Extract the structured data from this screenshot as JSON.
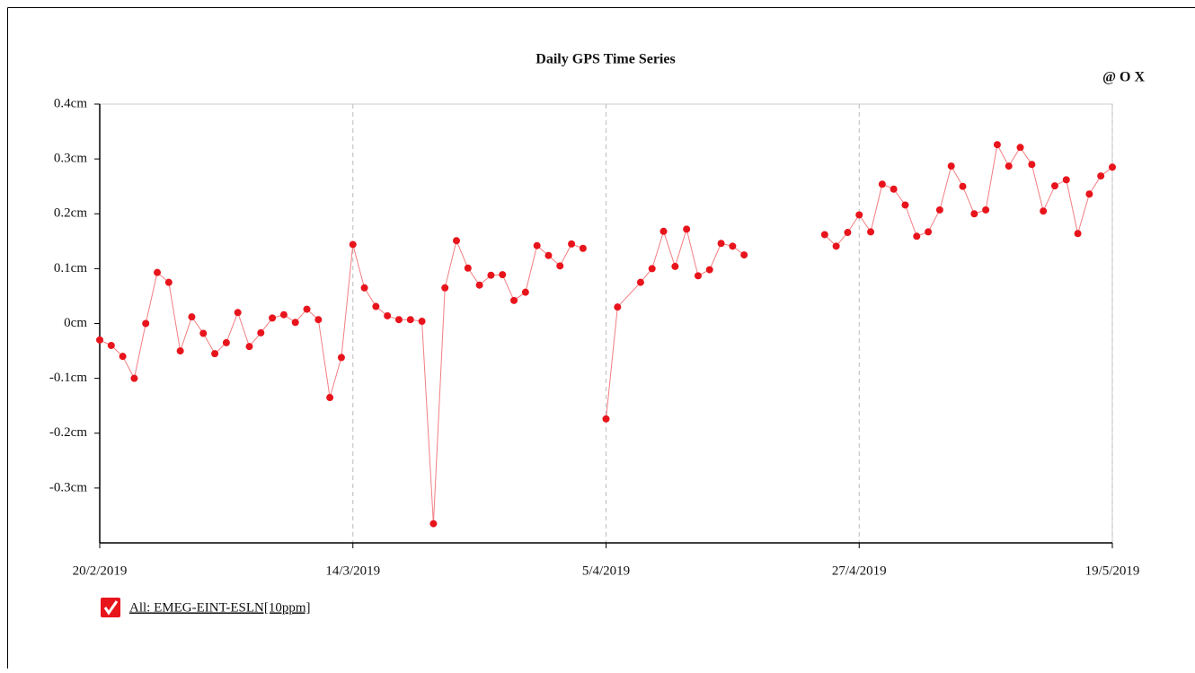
{
  "chart_data": {
    "type": "line",
    "title": "Daily GPS Time Series",
    "toolbar_text": "@ O X",
    "x": [
      "2019-02-20",
      "2019-02-21",
      "2019-02-22",
      "2019-02-23",
      "2019-02-24",
      "2019-02-25",
      "2019-02-26",
      "2019-02-27",
      "2019-02-28",
      "2019-03-01",
      "2019-03-02",
      "2019-03-03",
      "2019-03-04",
      "2019-03-05",
      "2019-03-06",
      "2019-03-07",
      "2019-03-08",
      "2019-03-09",
      "2019-03-10",
      "2019-03-11",
      "2019-03-12",
      "2019-03-13",
      "2019-03-14",
      "2019-03-15",
      "2019-03-16",
      "2019-03-17",
      "2019-03-18",
      "2019-03-19",
      "2019-03-20",
      "2019-03-21",
      "2019-03-22",
      "2019-03-23",
      "2019-03-24",
      "2019-03-25",
      "2019-03-26",
      "2019-03-27",
      "2019-03-28",
      "2019-03-29",
      "2019-03-30",
      "2019-03-31",
      "2019-04-01",
      "2019-04-02",
      "2019-04-03",
      "2019-04-04",
      "2019-04-05",
      "2019-04-06",
      "2019-04-08",
      "2019-04-09",
      "2019-04-10",
      "2019-04-11",
      "2019-04-12",
      "2019-04-13",
      "2019-04-14",
      "2019-04-15",
      "2019-04-16",
      "2019-04-17",
      "2019-04-18",
      "2019-04-24",
      "2019-04-25",
      "2019-04-26",
      "2019-04-27",
      "2019-04-28",
      "2019-04-29",
      "2019-04-30",
      "2019-05-01",
      "2019-05-02",
      "2019-05-03",
      "2019-05-04",
      "2019-05-05",
      "2019-05-06",
      "2019-05-07",
      "2019-05-08",
      "2019-05-09",
      "2019-05-10",
      "2019-05-11",
      "2019-05-12",
      "2019-05-13",
      "2019-05-14",
      "2019-05-15",
      "2019-05-16",
      "2019-05-17",
      "2019-05-18",
      "2019-05-19"
    ],
    "series": [
      {
        "name": "All: EMEG-EINT-ESLN[10ppm]",
        "color": "#e8141c",
        "values": [
          -0.03,
          -0.04,
          -0.06,
          -0.1,
          0.0,
          0.093,
          0.075,
          -0.05,
          0.012,
          -0.018,
          -0.055,
          -0.035,
          0.02,
          -0.042,
          -0.017,
          0.01,
          0.016,
          0.002,
          0.026,
          0.007,
          -0.135,
          -0.062,
          0.144,
          0.065,
          0.031,
          0.014,
          0.007,
          0.007,
          0.004,
          -0.365,
          0.065,
          0.151,
          0.101,
          0.07,
          0.088,
          0.089,
          0.042,
          0.057,
          0.142,
          0.124,
          0.105,
          0.145,
          0.137,
          null,
          -0.174,
          0.03,
          0.075,
          0.1,
          0.168,
          0.104,
          0.172,
          0.087,
          0.098,
          0.146,
          0.141,
          0.125,
          null,
          0.162,
          0.141,
          0.166,
          0.198,
          0.167,
          0.254,
          0.245,
          0.216,
          0.159,
          0.167,
          0.207,
          0.287,
          0.25,
          0.2,
          0.207,
          0.326,
          0.287,
          0.321,
          0.29,
          0.205,
          0.251,
          0.262,
          0.164,
          0.236,
          0.269,
          0.285
        ]
      }
    ],
    "xlim": [
      "2019-02-20",
      "2019-05-19"
    ],
    "xticks": [
      {
        "value": "2019-02-20",
        "label": "20/2/2019"
      },
      {
        "value": "2019-03-14",
        "label": "14/3/2019"
      },
      {
        "value": "2019-04-05",
        "label": "5/4/2019"
      },
      {
        "value": "2019-04-27",
        "label": "27/4/2019"
      },
      {
        "value": "2019-05-19",
        "label": "19/5/2019"
      }
    ],
    "ylim": [
      -0.4,
      0.4
    ],
    "yticks": [
      {
        "value": 0.4,
        "label": "0.4cm"
      },
      {
        "value": 0.3,
        "label": "0.3cm"
      },
      {
        "value": 0.2,
        "label": "0.2cm"
      },
      {
        "value": 0.1,
        "label": "0.1cm"
      },
      {
        "value": 0,
        "label": "0cm"
      },
      {
        "value": -0.1,
        "label": "-0.1cm"
      },
      {
        "value": -0.2,
        "label": "-0.2cm"
      },
      {
        "value": -0.3,
        "label": "-0.3cm"
      }
    ],
    "grid": "x"
  }
}
